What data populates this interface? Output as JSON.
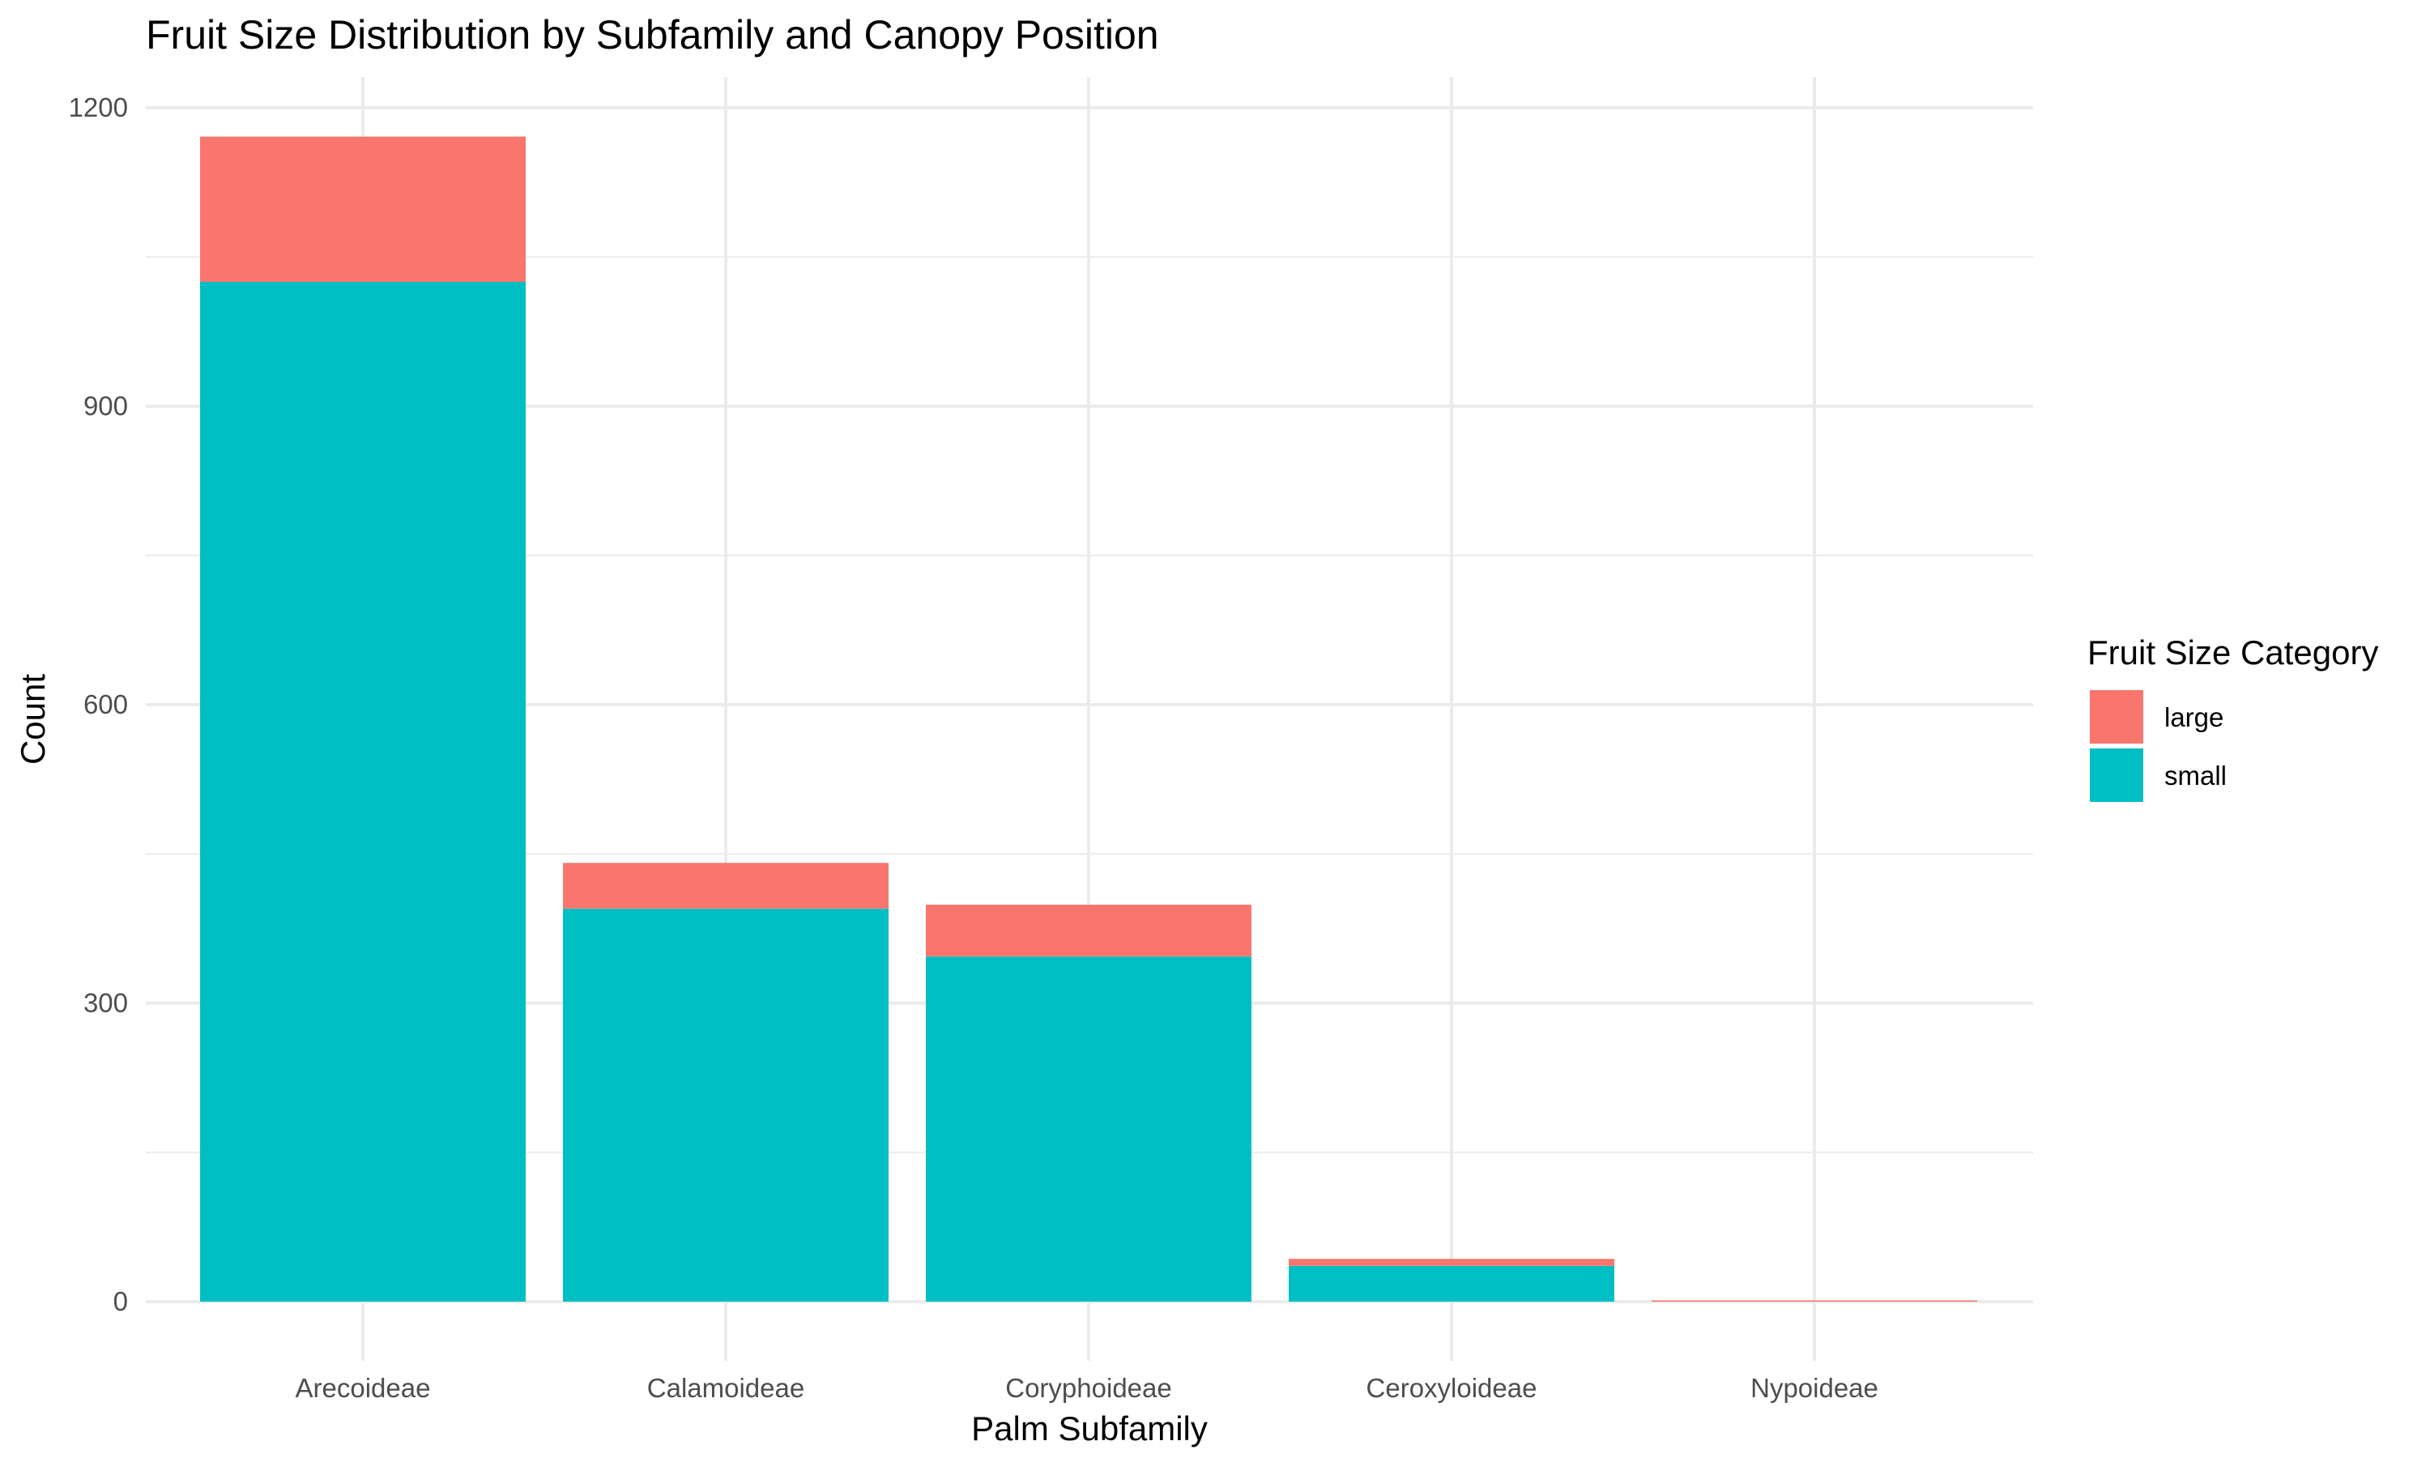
{
  "chart_data": {
    "type": "bar",
    "stacked": true,
    "title": "Fruit Size Distribution by Subfamily and Canopy Position",
    "xlabel": "Palm Subfamily",
    "ylabel": "Count",
    "categories": [
      "Arecoideae",
      "Calamoideae",
      "Coryphoideae",
      "Ceroxyloideae",
      "Nypoideae"
    ],
    "series": [
      {
        "name": "small",
        "color": "#00BFC4",
        "values": [
          1025,
          395,
          347,
          36,
          0
        ]
      },
      {
        "name": "large",
        "color": "#F8766D",
        "values": [
          146,
          46,
          52,
          7,
          1
        ]
      }
    ],
    "ylim": [
      0,
      1200
    ],
    "yticks": [
      0,
      300,
      600,
      900,
      1200
    ],
    "grid": true,
    "legend": {
      "title": "Fruit Size Category",
      "position": "right",
      "items": [
        {
          "label": "large",
          "color": "#F8766D"
        },
        {
          "label": "small",
          "color": "#00BFC4"
        }
      ]
    }
  }
}
